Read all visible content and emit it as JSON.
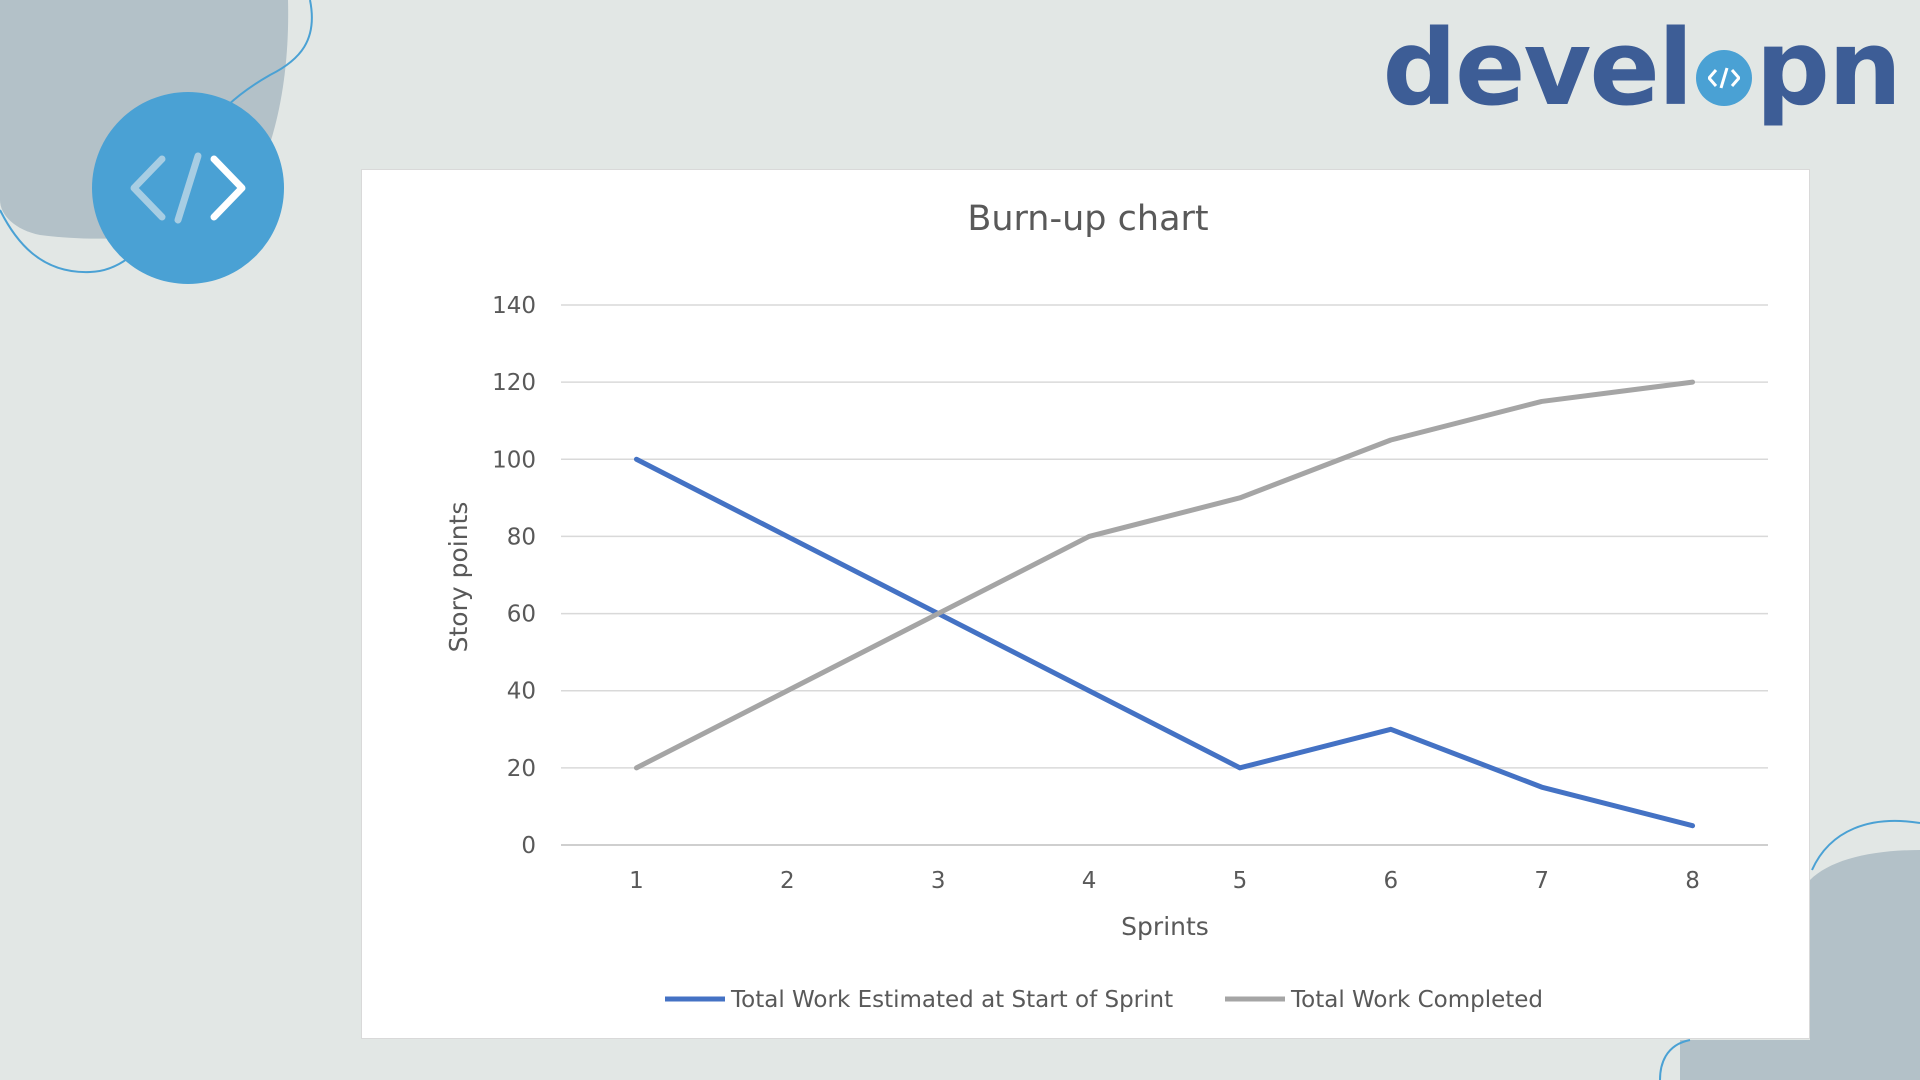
{
  "brand": {
    "word_left": "devel",
    "word_right": "pn",
    "icon": "code-brackets-icon",
    "colors": {
      "primary": "#3d5d96",
      "accent": "#4aa1d4",
      "blob": "#b3c1c8"
    }
  },
  "chart_data": {
    "type": "line",
    "title": "Burn-up chart",
    "xlabel": "Sprints",
    "ylabel": "Story points",
    "categories": [
      "1",
      "2",
      "3",
      "4",
      "5",
      "6",
      "7",
      "8"
    ],
    "ylim": [
      0,
      140
    ],
    "yticks": [
      0,
      20,
      40,
      60,
      80,
      100,
      120,
      140
    ],
    "grid": true,
    "legend_position": "bottom",
    "series": [
      {
        "name": "Total Work Estimated at Start of Sprint",
        "color": "#4472c4",
        "values": [
          100,
          80,
          60,
          40,
          20,
          30,
          15,
          5
        ]
      },
      {
        "name": "Total Work Completed",
        "color": "#a5a5a5",
        "values": [
          20,
          40,
          60,
          80,
          90,
          105,
          115,
          120
        ]
      }
    ]
  }
}
